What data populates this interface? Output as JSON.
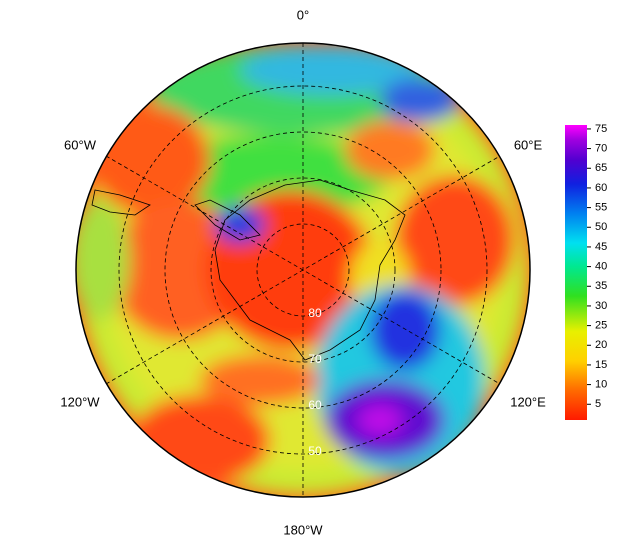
{
  "map": {
    "longitude_labels": [
      "0°",
      "60°E",
      "120°E",
      "180°W",
      "120°W",
      "60°W"
    ],
    "latitude_circles": [
      80,
      70,
      60,
      50
    ],
    "colorbar": {
      "range": [
        1,
        76
      ],
      "ticks": [
        5,
        10,
        15,
        20,
        25,
        30,
        35,
        40,
        45,
        50,
        55,
        60,
        65,
        70,
        75
      ]
    }
  }
}
